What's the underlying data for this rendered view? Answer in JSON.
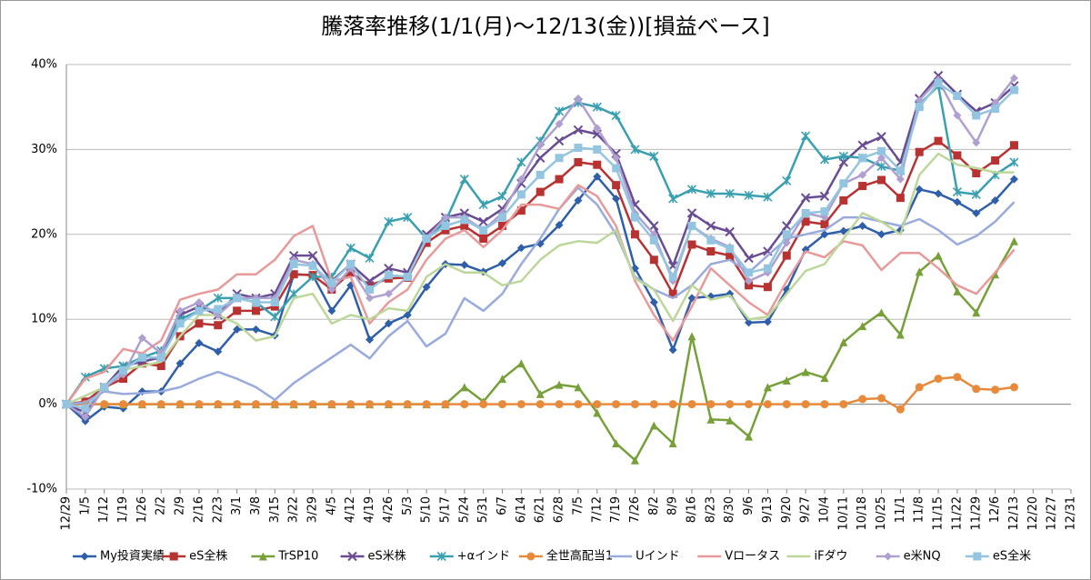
{
  "chart_data": {
    "type": "line",
    "title": "騰落率推移(1/1(月)〜12/13(金))[損益ベース]",
    "categories": [
      "12/29",
      "1/5",
      "1/12",
      "1/19",
      "1/26",
      "2/2",
      "2/9",
      "2/16",
      "2/23",
      "3/1",
      "3/8",
      "3/15",
      "3/22",
      "3/29",
      "4/5",
      "4/12",
      "4/19",
      "4/26",
      "5/3",
      "5/10",
      "5/17",
      "5/24",
      "5/31",
      "6/7",
      "6/14",
      "6/21",
      "6/28",
      "7/5",
      "7/12",
      "7/19",
      "7/26",
      "8/2",
      "8/9",
      "8/16",
      "8/23",
      "8/30",
      "9/6",
      "9/13",
      "9/20",
      "9/27",
      "10/4",
      "10/11",
      "10/18",
      "10/25",
      "11/1",
      "11/8",
      "11/15",
      "11/22",
      "11/29",
      "12/6",
      "12/13",
      "12/20",
      "12/27",
      "12/31"
    ],
    "ylim": [
      -10,
      40
    ],
    "yticks": [
      {
        "value": -10,
        "label": "-10%"
      },
      {
        "value": 0,
        "label": "0%"
      },
      {
        "value": 10,
        "label": "10%"
      },
      {
        "value": 20,
        "label": "20%"
      },
      {
        "value": 30,
        "label": "30%"
      },
      {
        "value": 40,
        "label": "40%"
      }
    ],
    "grid": true,
    "legend": "bottom",
    "series": [
      {
        "name": "My投資実績",
        "color": "#2e5fa8",
        "marker": "diamond",
        "values": [
          0,
          -2,
          -0.3,
          -0.5,
          1.5,
          1.5,
          4.8,
          7.2,
          6.2,
          8.8,
          8.8,
          8.1,
          15.3,
          15.2,
          11,
          14,
          7.6,
          9.5,
          10.5,
          13.8,
          16.5,
          16.4,
          15.6,
          16.6,
          18.4,
          18.9,
          21.1,
          24,
          26.8,
          24.2,
          16,
          12,
          6.4,
          12.5,
          12.7,
          13,
          9.6,
          9.7,
          13.5,
          18.2,
          20,
          20.4,
          21,
          20,
          20.5,
          25.3,
          24.8,
          23.8,
          22.5,
          24,
          26.5,
          null,
          null,
          null
        ]
      },
      {
        "name": "eS全株",
        "color": "#b83232",
        "marker": "square",
        "values": [
          0,
          0.3,
          2,
          3,
          4.8,
          4.5,
          8,
          9.5,
          9.3,
          11,
          11,
          11.5,
          15.3,
          15.2,
          13.5,
          15.5,
          14,
          14.8,
          14.9,
          19,
          20.5,
          21,
          19.5,
          21,
          22.8,
          25,
          26.5,
          28.5,
          28.2,
          25.8,
          20,
          17,
          13,
          18.8,
          18,
          17.5,
          14,
          13.8,
          17.5,
          21.5,
          21.2,
          24,
          25.7,
          26.4,
          24.3,
          29.7,
          31,
          29.3,
          27.2,
          28.7,
          30.5,
          null,
          null,
          null
        ]
      },
      {
        "name": "TrSP10",
        "color": "#77a03a",
        "marker": "triangle",
        "values": [
          0,
          0,
          0,
          0,
          0,
          0,
          0,
          0,
          0,
          0,
          0,
          0,
          0,
          0,
          0,
          0,
          0,
          0,
          0,
          0,
          0,
          2,
          0.3,
          3,
          4.8,
          1.2,
          2.3,
          2,
          -1,
          -4.6,
          -6.6,
          -2.5,
          -4.6,
          8,
          -1.8,
          -1.9,
          -3.8,
          2,
          2.8,
          3.8,
          3.1,
          7.3,
          9.2,
          10.8,
          8.2,
          15.6,
          17.5,
          13.3,
          10.8,
          15.3,
          19.2,
          null,
          null,
          null
        ]
      },
      {
        "name": "eS米株",
        "color": "#6a4c93",
        "marker": "x",
        "values": [
          0,
          -1,
          2,
          4.5,
          5,
          5.5,
          10.5,
          11.5,
          10.5,
          13,
          12.5,
          13,
          17.5,
          17.5,
          14.5,
          16.5,
          14.5,
          16,
          15.5,
          20,
          22,
          22.5,
          21.5,
          23,
          26,
          29,
          31,
          32.3,
          31.8,
          29.5,
          23.5,
          21,
          16.3,
          22.5,
          21,
          20.3,
          17.2,
          18,
          21,
          24.3,
          24.5,
          28.5,
          30.5,
          31.5,
          28.5,
          36,
          38.7,
          36.5,
          34.5,
          35.5,
          37.5,
          null,
          null,
          null
        ]
      },
      {
        "name": "+αインド",
        "color": "#3aa0b0",
        "marker": "star",
        "values": [
          0,
          3.2,
          4.2,
          4.5,
          5.5,
          6.3,
          10,
          11,
          12.5,
          12.5,
          12,
          10.3,
          13,
          15,
          15,
          18.4,
          17.2,
          21.5,
          22,
          19.5,
          21.5,
          26.5,
          23.5,
          24.5,
          28.5,
          31,
          34.5,
          35.5,
          35,
          34,
          30,
          29.2,
          24.2,
          25.3,
          24.8,
          24.8,
          24.6,
          24.4,
          26.3,
          31.6,
          28.8,
          29.2,
          29,
          28,
          27.5,
          35.3,
          37.5,
          25,
          24.7,
          27,
          28.5,
          null,
          null,
          null
        ]
      },
      {
        "name": "全世高配当1",
        "color": "#e88a3c",
        "marker": "circle",
        "values": [
          0,
          0,
          0,
          0,
          0,
          0,
          0,
          0,
          0,
          0,
          0,
          0,
          0,
          0,
          0,
          0,
          0,
          0,
          0,
          0,
          0,
          0,
          0,
          0,
          0,
          0,
          0,
          0,
          0,
          0,
          0,
          0,
          0,
          0,
          0,
          0,
          0,
          0,
          0,
          0,
          0,
          0,
          0.6,
          0.7,
          -0.6,
          2,
          3,
          3.2,
          1.8,
          1.7,
          2,
          null,
          null,
          null
        ]
      },
      {
        "name": "Uインド",
        "color": "#99aadd",
        "marker": "none",
        "values": [
          0,
          0.2,
          1.5,
          1.2,
          1.3,
          1.5,
          2,
          3,
          3.8,
          3,
          2,
          0.5,
          2.5,
          4,
          5.5,
          7,
          5.4,
          8,
          9.8,
          6.8,
          8.3,
          12.5,
          11,
          13,
          16.5,
          19.5,
          23,
          25.5,
          23.5,
          20,
          15,
          13.5,
          12.5,
          14,
          16.5,
          17,
          15.5,
          17.5,
          19.5,
          20,
          20.5,
          22,
          22,
          21.5,
          21,
          21.8,
          20.5,
          18.8,
          19.8,
          21.5,
          23.8,
          null,
          null,
          null
        ]
      },
      {
        "name": "Vロータス",
        "color": "#e89a9a",
        "marker": "none",
        "values": [
          0,
          3,
          3.8,
          6.5,
          6,
          7.5,
          12.3,
          13,
          13.5,
          15.3,
          15.3,
          17,
          19.8,
          21,
          14.5,
          15,
          9.5,
          12,
          13.5,
          17,
          19.5,
          20.5,
          18.5,
          20.5,
          23.5,
          23.5,
          23,
          25.8,
          24.5,
          21,
          14.5,
          10.5,
          7.5,
          11.5,
          16,
          14,
          12,
          10.5,
          14.5,
          18,
          17.3,
          19.2,
          18.7,
          15.8,
          17.8,
          17.8,
          16,
          14,
          13,
          15.5,
          18.2,
          null,
          null,
          null
        ]
      },
      {
        "name": "iFダウ",
        "color": "#bdd79a",
        "marker": "none",
        "values": [
          0,
          1,
          2,
          4,
          4.5,
          5,
          8,
          10.5,
          10.5,
          9.5,
          7.5,
          8,
          12.5,
          13,
          9.5,
          10.5,
          10,
          11.3,
          11,
          15,
          16.5,
          15.5,
          15.5,
          14,
          14.5,
          17,
          18.7,
          19.2,
          19,
          20.5,
          14.8,
          13.5,
          9.8,
          14,
          12.3,
          12.8,
          10,
          10.3,
          13,
          15.7,
          16.5,
          19.5,
          22.5,
          21.5,
          20,
          27,
          29.5,
          28.2,
          27.8,
          27.3,
          27.3,
          null,
          null,
          null
        ]
      },
      {
        "name": "e米NQ",
        "color": "#b0a0d0",
        "marker": "diamond",
        "values": [
          0,
          -1.5,
          2,
          3.5,
          7.8,
          6,
          11,
          12,
          10.5,
          12.5,
          12.5,
          12.5,
          17,
          16.5,
          13.5,
          16,
          12.5,
          13,
          15,
          19.5,
          22,
          22,
          20.5,
          22.5,
          26.5,
          30.5,
          33,
          36,
          32.5,
          29,
          22.5,
          20,
          14.5,
          21,
          19.5,
          18.5,
          14.5,
          15.5,
          19,
          22.5,
          22,
          26,
          27,
          29,
          26.5,
          35.8,
          38.2,
          34,
          30.8,
          35.5,
          38.4,
          null,
          null,
          null
        ]
      },
      {
        "name": "eS全米",
        "color": "#93c5e0",
        "marker": "square",
        "values": [
          0,
          -0.5,
          2,
          4,
          5.5,
          5.5,
          9.5,
          11,
          11.2,
          12.5,
          12,
          12,
          16.5,
          16.3,
          14.3,
          16.5,
          13.5,
          15.2,
          15,
          19.5,
          21,
          21.7,
          20.5,
          22,
          24.7,
          27,
          29,
          30.2,
          30,
          27.8,
          22,
          19.3,
          15,
          21,
          19.3,
          18.3,
          15.5,
          16,
          20,
          22.5,
          22.7,
          26,
          29,
          29.8,
          27.5,
          35,
          37.8,
          36.3,
          34,
          34.8,
          37,
          null,
          null,
          null
        ]
      }
    ]
  }
}
